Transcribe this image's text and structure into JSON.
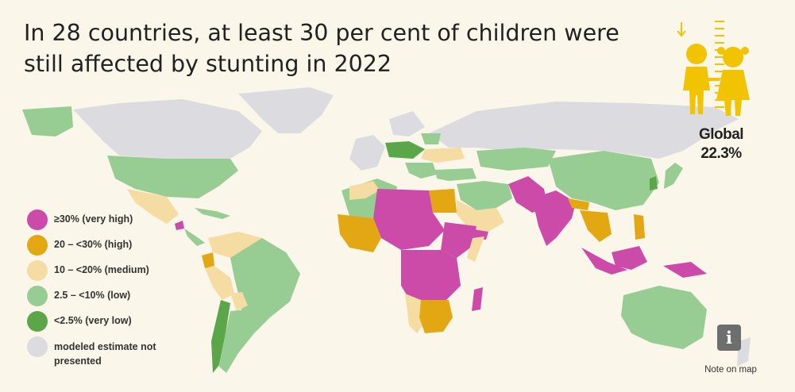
{
  "title": "In 28 countries, at least 30 per cent of children were still affected by stunting in 2022",
  "global": {
    "label": "Global",
    "value": "22.3%"
  },
  "legend": [
    {
      "label": "≥30% (very high)",
      "color": "#cc4aa8"
    },
    {
      "label": "20 – <30% (high)",
      "color": "#e2a712"
    },
    {
      "label": "10 – <20% (medium)",
      "color": "#f4dca3"
    },
    {
      "label": "2.5 – <10% (low)",
      "color": "#97cd92"
    },
    {
      "label": "<2.5% (very low)",
      "color": "#5aa648"
    },
    {
      "label": "modeled estimate not presented",
      "color": "#dcdbe0"
    }
  ],
  "note": {
    "label": "Note on map",
    "icon": "info-icon"
  }
}
